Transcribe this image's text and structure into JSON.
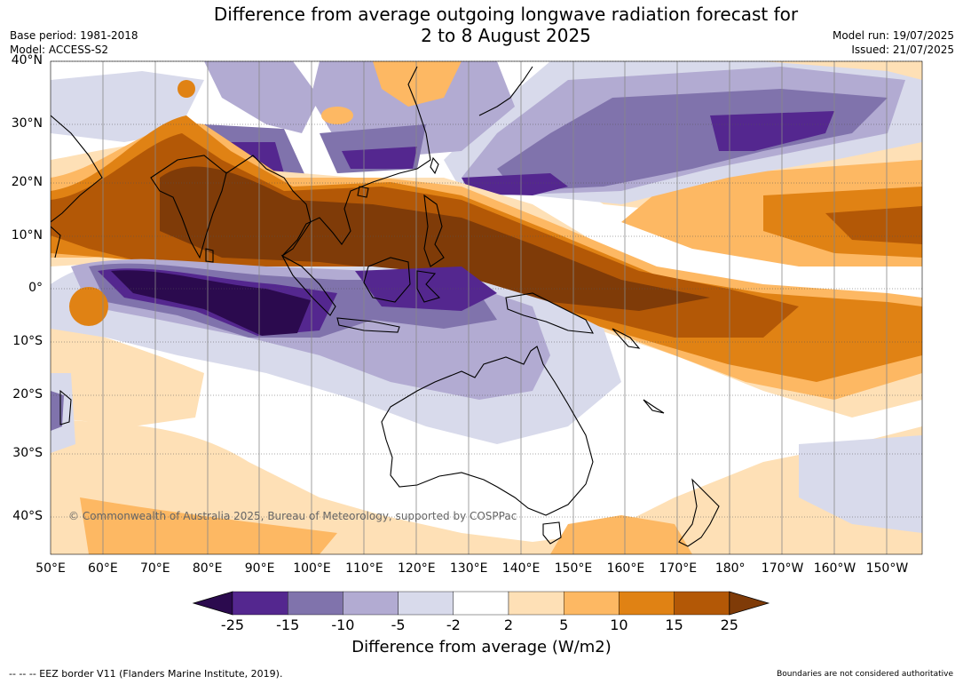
{
  "title_line1": "Difference from average outgoing longwave radiation forecast for",
  "title_line2": "2 to 8 August 2025",
  "meta": {
    "base_period": "Base period: 1981-2018",
    "model": "Model: ACCESS-S2",
    "model_run": "Model run: 19/07/2025",
    "issued": "Issued: 21/07/2025"
  },
  "latitude_labels": [
    "40°N",
    "30°N",
    "20°N",
    "10°N",
    "0°",
    "10°S",
    "20°S",
    "30°S",
    "40°S"
  ],
  "longitude_labels": [
    "50°E",
    "60°E",
    "70°E",
    "80°E",
    "90°E",
    "100°E",
    "110°E",
    "120°E",
    "130°E",
    "140°E",
    "150°E",
    "160°E",
    "170°E",
    "180°",
    "170°W",
    "160°W",
    "150°W"
  ],
  "copyright": "© Commonwealth of Australia 2025, Bureau of Meteorology, supported by COSPPac",
  "colorbar": {
    "ticks": [
      "-25",
      "-15",
      "-10",
      "-5",
      "-2",
      "2",
      "5",
      "10",
      "15",
      "25"
    ],
    "colors": [
      "#2b0a4e",
      "#54278f",
      "#8073ac",
      "#b2abd2",
      "#d8daeb",
      "#ffffff",
      "#fee0b6",
      "#fdb863",
      "#e08214",
      "#b35806",
      "#7f3b08"
    ],
    "label": "Difference from average (W/m2)"
  },
  "footer_left": "--  --  -- EEZ border V11 (Flanders Marine Institute, 2019).",
  "footer_right": "Boundaries are not considered authoritative"
}
